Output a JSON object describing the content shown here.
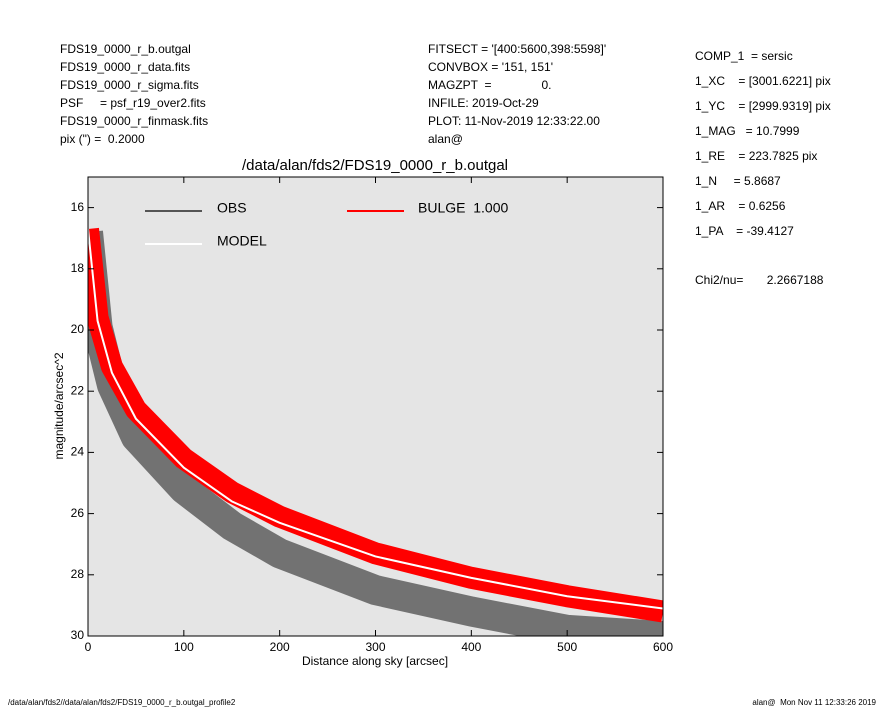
{
  "header": {
    "left": [
      "FDS19_0000_r_b.outgal",
      "FDS19_0000_r_data.fits",
      "FDS19_0000_r_sigma.fits",
      "PSF     = psf_r19_over2.fits",
      "FDS19_0000_r_finmask.fits",
      "pix (\") =  0.2000"
    ],
    "middle": [
      "FITSECT = '[400:5600,398:5598]'",
      "CONVBOX = '151, 151'",
      "MAGZPT  =               0.",
      "INFILE: 2019-Oct-29",
      "PLOT: 11-Nov-2019 12:33:22.00",
      "alan@"
    ],
    "right": [
      "COMP_1  = sersic",
      "1_XC    = [3001.6221] pix",
      "1_YC    = [2999.9319] pix",
      "1_MAG   = 10.7999",
      "1_RE    = 223.7825 pix",
      "1_N     = 5.8687",
      "1_AR    = 0.6256",
      "1_PA    = -39.4127"
    ],
    "chi2": "Chi2/nu=       2.2667188"
  },
  "footer": {
    "left": "/data/alan/fds2//data/alan/fds2/FDS19_0000_r_b.outgal_profile2",
    "right": "alan@  Mon Nov 11 12:33:26 2019"
  },
  "chart_data": {
    "type": "line",
    "title": "/data/alan/fds2/FDS19_0000_r_b.outgal",
    "x_label": "Distance along sky [arcsec]",
    "y_label": "magnitude/arcsec^2",
    "x": [
      0,
      10,
      25,
      50,
      100,
      150,
      200,
      300,
      400,
      500,
      600
    ],
    "series": [
      {
        "name": "OBS",
        "color": "#555555",
        "values": [
          16.8,
          19.9,
          21.8,
          23.5,
          25.2,
          26.4,
          27.3,
          28.5,
          29.2,
          29.8,
          30
        ]
      },
      {
        "name": "BULGE  1.000",
        "color": "#ff0000",
        "values": [
          16.7,
          19.6,
          21.2,
          22.6,
          24.2,
          25.3,
          26.1,
          27.3,
          28.1,
          28.7,
          29.2
        ]
      },
      {
        "name": "MODEL",
        "color": "#ffffff",
        "values": [
          16.7,
          19.7,
          21.4,
          22.9,
          24.5,
          25.6,
          26.3,
          27.4,
          28.1,
          28.7,
          29.1
        ]
      }
    ],
    "xlim": [
      0,
      600
    ],
    "ylim": [
      30,
      15
    ],
    "xticks": [
      0,
      100,
      200,
      300,
      400,
      500,
      600
    ],
    "yticks": [
      16,
      18,
      20,
      22,
      24,
      26,
      28,
      30
    ],
    "background": "#e5e5e5"
  }
}
